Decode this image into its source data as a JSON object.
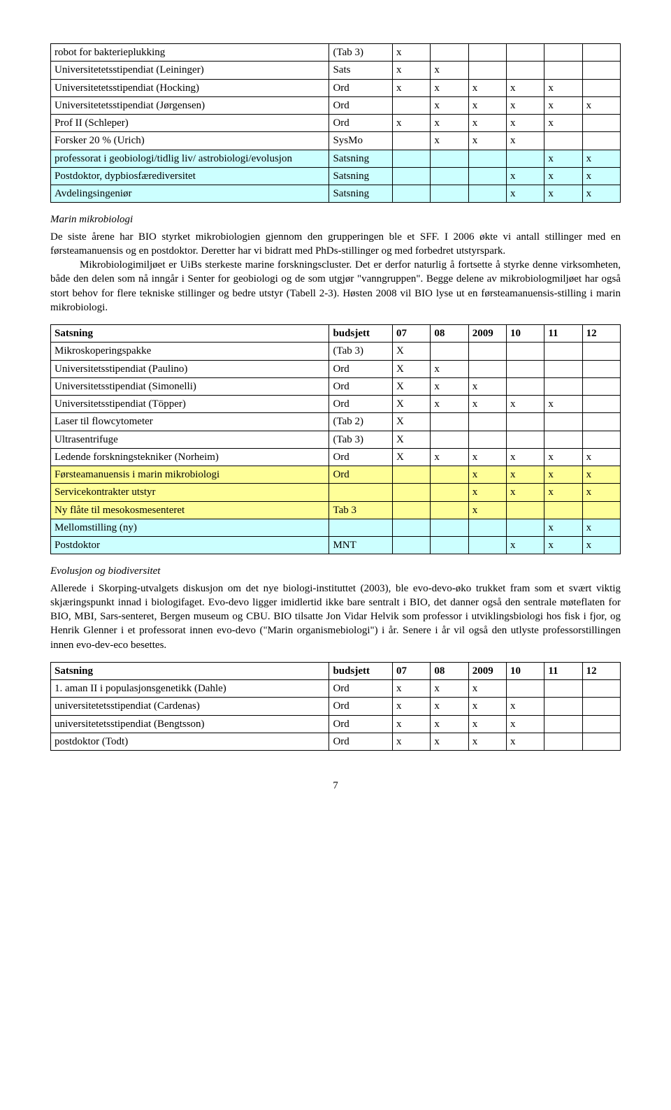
{
  "table1": {
    "rows": [
      {
        "cls": "row-plain",
        "c": [
          "robot for bakterieplukking",
          "(Tab 3)",
          "x",
          "",
          "",
          "",
          "",
          ""
        ]
      },
      {
        "cls": "row-plain",
        "c": [
          "Universitetetsstipendiat (Leininger)",
          "Sats",
          "x",
          "x",
          "",
          "",
          "",
          ""
        ]
      },
      {
        "cls": "row-plain",
        "c": [
          "Universitetetsstipendiat (Hocking)",
          "Ord",
          "x",
          "x",
          "x",
          "x",
          "x",
          ""
        ]
      },
      {
        "cls": "row-plain",
        "c": [
          "Universitetetsstipendiat (Jørgensen)",
          "Ord",
          "",
          "x",
          "x",
          "x",
          "x",
          "x"
        ]
      },
      {
        "cls": "row-plain",
        "c": [
          "Prof II (Schleper)",
          "Ord",
          "x",
          "x",
          "x",
          "x",
          "x",
          ""
        ]
      },
      {
        "cls": "row-plain",
        "c": [
          "Forsker 20 % (Urich)",
          "SysMo",
          "",
          "x",
          "x",
          "x",
          "",
          ""
        ]
      },
      {
        "cls": "row-blue",
        "c": [
          "professorat i geobiologi/tidlig liv/ astrobiologi/evolusjon",
          "Satsning",
          "",
          "",
          "",
          "",
          "x",
          "x"
        ]
      },
      {
        "cls": "row-blue",
        "c": [
          "Postdoktor, dypbiosfærediversitet",
          "Satsning",
          "",
          "",
          "",
          "x",
          "x",
          "x"
        ]
      },
      {
        "cls": "row-blue",
        "c": [
          "Avdelingsingeniør",
          "Satsning",
          "",
          "",
          "",
          "x",
          "x",
          "x"
        ]
      }
    ]
  },
  "section1": {
    "heading": "Marin mikrobiologi",
    "p1": "De siste årene har BIO styrket mikrobiologien gjennom den grupperingen ble et SFF. I 2006 økte vi antall stillinger med en førsteamanuensis og en postdoktor. Deretter har vi bidratt med PhDs-stillinger og med forbedret utstyrspark.",
    "p2": "Mikrobiologimiljøet er UiBs sterkeste marine forskningscluster. Det er derfor naturlig å fortsette å styrke denne virksomheten, både den delen som nå inngår i Senter for geobiologi og de som utgjør \"vanngruppen\". Begge delene av mikrobiologmiljøet har også stort behov for flere tekniske stillinger og bedre utstyr (Tabell 2-3). Høsten 2008 vil BIO lyse ut en førsteamanuensis-stilling i marin mikrobiologi."
  },
  "table2": {
    "header": [
      "Satsning",
      "budsjett",
      "07",
      "08",
      "2009",
      "10",
      "11",
      "12"
    ],
    "rows": [
      {
        "cls": "row-plain",
        "c": [
          "Mikroskoperingspakke",
          "(Tab 3)",
          "X",
          "",
          "",
          "",
          "",
          ""
        ]
      },
      {
        "cls": "row-plain",
        "c": [
          "Universitetsstipendiat (Paulino)",
          "Ord",
          "X",
          "x",
          "",
          "",
          "",
          ""
        ]
      },
      {
        "cls": "row-plain",
        "c": [
          "Universitetsstipendiat (Simonelli)",
          "Ord",
          "X",
          "x",
          "x",
          "",
          "",
          ""
        ]
      },
      {
        "cls": "row-plain",
        "c": [
          "Universitetsstipendiat (Töpper)",
          "Ord",
          "X",
          "x",
          "x",
          "x",
          "x",
          ""
        ]
      },
      {
        "cls": "row-plain",
        "c": [
          "Laser til flowcytometer",
          "(Tab 2)",
          "X",
          "",
          "",
          "",
          "",
          ""
        ]
      },
      {
        "cls": "row-plain",
        "c": [
          "Ultrasentrifuge",
          "(Tab 3)",
          "X",
          "",
          "",
          "",
          "",
          ""
        ]
      },
      {
        "cls": "row-plain",
        "c": [
          "Ledende forskningstekniker (Norheim)",
          "Ord",
          "X",
          "x",
          "x",
          "x",
          "x",
          "x"
        ]
      },
      {
        "cls": "row-yellow",
        "c": [
          "Førsteamanuensis i marin mikrobiologi",
          "Ord",
          "",
          "",
          "x",
          "x",
          "x",
          "x"
        ]
      },
      {
        "cls": "row-yellow",
        "c": [
          "Servicekontrakter utstyr",
          "",
          "",
          "",
          "x",
          "x",
          "x",
          "x"
        ]
      },
      {
        "cls": "row-yellow",
        "c": [
          "Ny flåte til mesokosmesenteret",
          "Tab 3",
          "",
          "",
          "x",
          "",
          "",
          ""
        ]
      },
      {
        "cls": "row-blue",
        "c": [
          "Mellomstilling (ny)",
          "",
          "",
          "",
          "",
          "",
          "x",
          "x"
        ]
      },
      {
        "cls": "row-blue",
        "c": [
          "Postdoktor",
          "MNT",
          "",
          "",
          "",
          "x",
          "x",
          "x"
        ]
      }
    ]
  },
  "section2": {
    "heading": "Evolusjon og biodiversitet",
    "p1": "Allerede i Skorping-utvalgets diskusjon om det nye biologi-instituttet (2003), ble evo-devo-øko trukket fram som et svært viktig skjæringspunkt innad i biologifaget. Evo-devo ligger imidlertid ikke bare sentralt i BIO, det danner også den sentrale møteflaten for BIO, MBI, Sars-senteret, Bergen museum og CBU. BIO tilsatte Jon Vidar Helvik som professor i utviklingsbiologi hos fisk i fjor, og Henrik Glenner i et professorat innen evo-devo (\"Marin organismebiologi\") i år. Senere i år vil også den utlyste professorstillingen innen evo-dev-eco besettes."
  },
  "table3": {
    "header": [
      "Satsning",
      "budsjett",
      "07",
      "08",
      "2009",
      "10",
      "11",
      "12"
    ],
    "rows": [
      {
        "cls": "row-plain",
        "c": [
          "1. aman II i populasjonsgenetikk (Dahle)",
          "Ord",
          "x",
          "x",
          "x",
          "",
          "",
          ""
        ]
      },
      {
        "cls": "row-plain",
        "c": [
          "universitetetsstipendiat (Cardenas)",
          "Ord",
          "x",
          "x",
          "x",
          "x",
          "",
          ""
        ]
      },
      {
        "cls": "row-plain",
        "c": [
          "universitetetsstipendiat (Bengtsson)",
          "Ord",
          "x",
          "x",
          "x",
          "x",
          "",
          ""
        ]
      },
      {
        "cls": "row-plain",
        "c": [
          "postdoktor (Todt)",
          "Ord",
          "x",
          "x",
          "x",
          "x",
          "",
          ""
        ]
      }
    ]
  },
  "pageNumber": "7"
}
